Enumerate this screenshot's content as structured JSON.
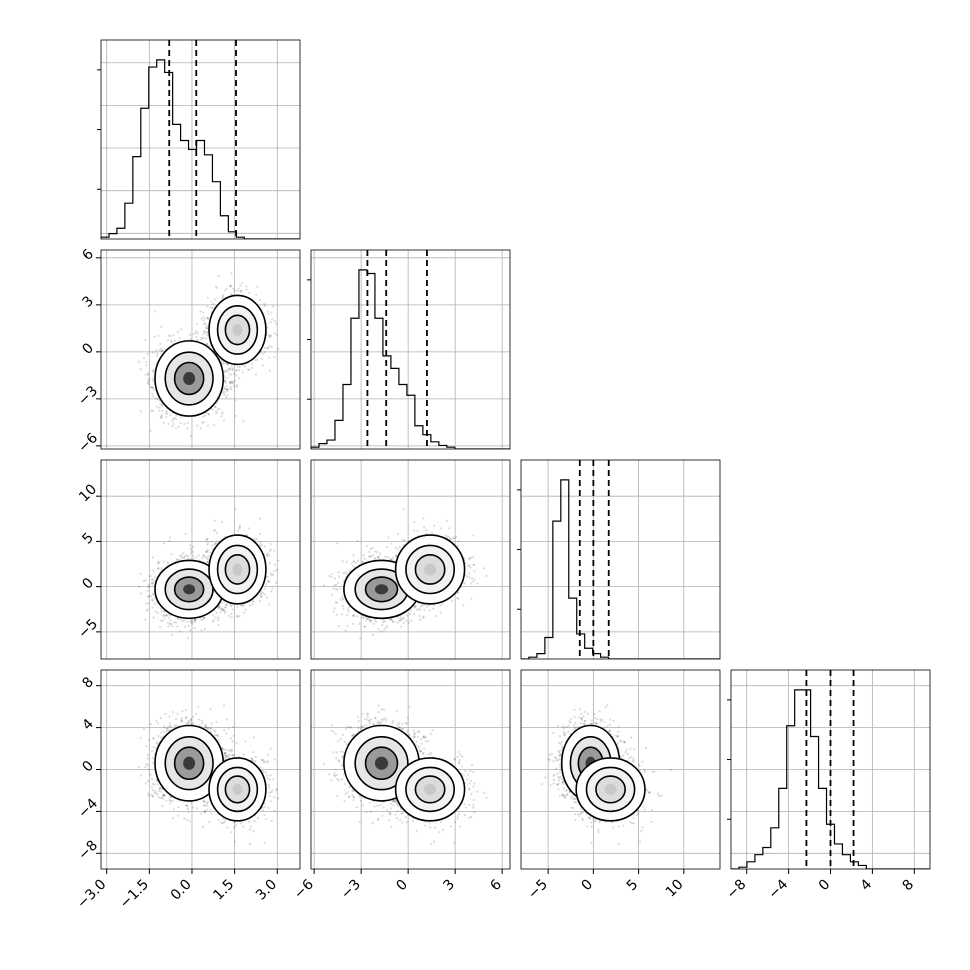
{
  "chart_data": {
    "type": "corner",
    "parameters": 4,
    "axis_ranges": [
      [
        -3.2,
        3.8
      ],
      [
        -6.2,
        6.5
      ],
      [
        -8.0,
        14.0
      ],
      [
        -9.5,
        9.5
      ]
    ],
    "ticks": [
      [
        "−3.0",
        "−1.5",
        "0.0",
        "1.5",
        "3.0"
      ],
      [
        "−6",
        "−3",
        "0",
        "3",
        "6"
      ],
      [
        "−5",
        "0",
        "5",
        "10"
      ],
      [
        "−8",
        "−4",
        "0",
        "4",
        "8"
      ]
    ],
    "tick_values": [
      [
        -3.0,
        -1.5,
        0.0,
        1.5,
        3.0
      ],
      [
        -6,
        -3,
        0,
        3,
        6
      ],
      [
        -5,
        0,
        5,
        10
      ],
      [
        -8,
        -4,
        0,
        4,
        8
      ]
    ],
    "grid": true,
    "quantile_lines": [
      [
        -0.8,
        0.15,
        1.55
      ],
      [
        -2.6,
        -1.4,
        1.2
      ],
      [
        -1.5,
        0.0,
        1.7
      ],
      [
        -2.3,
        0.0,
        2.2
      ]
    ],
    "histograms": [
      {
        "edges_start": -3.2,
        "bin_width": 0.28,
        "counts": [
          1,
          3,
          6,
          20,
          46,
          73,
          96,
          100,
          93,
          64,
          55,
          50,
          55,
          47,
          32,
          13,
          4,
          1,
          0,
          0,
          0,
          0,
          0,
          0,
          0
        ]
      },
      {
        "edges_start": -6.2,
        "bin_width": 0.51,
        "counts": [
          1,
          3,
          5,
          16,
          36,
          73,
          100,
          98,
          73,
          52,
          45,
          36,
          30,
          13,
          8,
          4,
          2,
          1,
          0,
          0,
          0,
          0,
          0,
          0,
          0
        ]
      },
      {
        "edges_start": -8.0,
        "bin_width": 0.88,
        "counts": [
          0,
          1,
          3,
          12,
          77,
          100,
          34,
          14,
          6,
          3,
          1,
          0,
          0,
          0,
          0,
          0,
          0,
          0,
          0,
          0,
          0,
          0,
          0,
          0,
          0
        ]
      },
      {
        "edges_start": -9.5,
        "bin_width": 0.76,
        "counts": [
          0,
          1,
          4,
          8,
          12,
          23,
          45,
          80,
          100,
          100,
          74,
          45,
          25,
          14,
          8,
          4,
          2,
          0,
          0,
          0,
          0,
          0,
          0,
          0,
          0
        ]
      }
    ],
    "scatter_components": [
      {
        "weight": 0.65,
        "mean": [
          -0.1,
          -1.7,
          -0.3,
          0.6
        ],
        "sd": [
          0.6,
          1.2,
          1.6,
          1.8
        ]
      },
      {
        "weight": 0.35,
        "mean": [
          1.6,
          1.4,
          1.9,
          -1.9
        ],
        "sd": [
          0.5,
          1.1,
          1.9,
          1.5
        ]
      }
    ]
  }
}
